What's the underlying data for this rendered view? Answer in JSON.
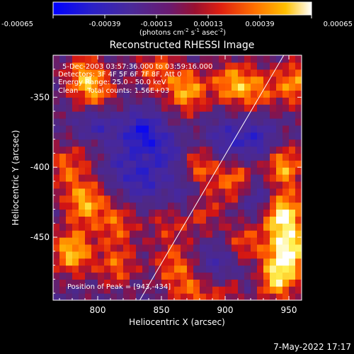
{
  "chart_data": {
    "type": "heatmap",
    "title": "Reconstructed RHESSI Image",
    "xlabel": "Heliocentric X (arcsec)",
    "ylabel": "Heliocentric Y (arcsec)",
    "xlim": [
      765,
      960
    ],
    "ylim": [
      -495,
      -320
    ],
    "x_ticks": [
      "800",
      "850",
      "900",
      "950"
    ],
    "x_tick_values": [
      800,
      850,
      900,
      950
    ],
    "y_ticks": [
      "-350",
      "-400",
      "-450"
    ],
    "y_tick_values": [
      -350,
      -400,
      -450
    ],
    "colorbar": {
      "range": [
        -0.00065,
        0.00065
      ],
      "tick_labels": [
        "-0.00065",
        "-0.00039",
        "-0.00013",
        "0.00013",
        "0.00039",
        "0.00065"
      ],
      "tick_values": [
        -0.00065,
        -0.00039,
        -0.00013,
        0.00013,
        0.00039,
        0.00065
      ],
      "unit_label": "(photons cm^-2 s^-1 asec^-2)",
      "colors": [
        "#0000ff",
        "#3a2cb0",
        "#5a2a9e",
        "#7a1a6a",
        "#c81818",
        "#ff5a00",
        "#ffb000",
        "#ffff60",
        "#ffffff"
      ]
    },
    "annotations": [
      "5-Dec-2003 03:57:36.000 to 03:59:16.000",
      "Detectors: 3F 4F 5F 6F 7F 8F, Att 0",
      "Energy Range: 25.0 - 50.0 keV",
      "Clean    Total counts: 1.56E+03"
    ],
    "peak_label": "Position of Peak = [943,-434]",
    "limb_line": [
      [
        833,
        -495
      ],
      [
        946,
        -320
      ]
    ],
    "hot_spots": [
      [
        790,
        -335,
        0.0004
      ],
      [
        800,
        -350,
        0.0003
      ],
      [
        845,
        -330,
        0.0003
      ],
      [
        870,
        -345,
        0.00045
      ],
      [
        905,
        -340,
        0.0004
      ],
      [
        925,
        -345,
        0.0003
      ],
      [
        955,
        -340,
        0.0004
      ],
      [
        775,
        -400,
        0.0003
      ],
      [
        790,
        -425,
        0.00045
      ],
      [
        780,
        -460,
        0.0005
      ],
      [
        815,
        -440,
        0.0003
      ],
      [
        815,
        -470,
        0.0003
      ],
      [
        880,
        -400,
        0.00035
      ],
      [
        880,
        -430,
        0.0003
      ],
      [
        910,
        -410,
        0.0004
      ],
      [
        915,
        -455,
        0.0003
      ],
      [
        945,
        -400,
        0.00045
      ],
      [
        945,
        -434,
        0.00065
      ],
      [
        950,
        -460,
        0.0006
      ],
      [
        940,
        -480,
        0.0005
      ],
      [
        860,
        -470,
        0.0003
      ],
      [
        875,
        -490,
        0.0003
      ],
      [
        905,
        -485,
        0.00035
      ],
      [
        855,
        -440,
        0.0002
      ],
      [
        800,
        -385,
        0.0002
      ]
    ],
    "cold_spots": [
      [
        800,
        -370,
        -0.0004
      ],
      [
        835,
        -375,
        -0.0005
      ],
      [
        855,
        -390,
        -0.0003
      ],
      [
        835,
        -410,
        -0.00035
      ],
      [
        870,
        -420,
        -0.0003
      ],
      [
        900,
        -380,
        -0.0003
      ],
      [
        925,
        -380,
        -0.00035
      ],
      [
        925,
        -420,
        -0.00035
      ],
      [
        895,
        -470,
        -0.0003
      ],
      [
        915,
        -480,
        -0.00025
      ],
      [
        815,
        -395,
        -0.00025
      ]
    ]
  },
  "footer": {
    "timestamp": "7-May-2022 17:17"
  }
}
